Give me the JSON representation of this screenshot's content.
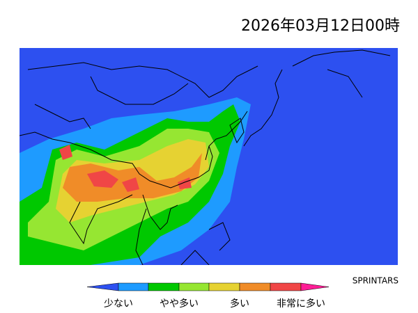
{
  "header": {
    "title": "2026年03月12日00時"
  },
  "credit": "SPRINTARS",
  "legend": {
    "labels": [
      "少ない",
      "やや多い",
      "多い",
      "非常に多い"
    ]
  }
}
